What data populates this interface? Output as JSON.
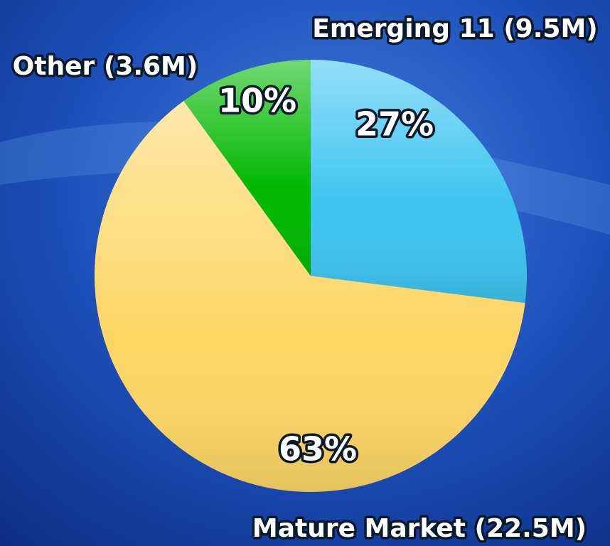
{
  "chart_data": {
    "type": "pie",
    "categories": [
      "Emerging 11 (9.5M)",
      "Mature Market (22.5M)",
      "Other (3.6M)"
    ],
    "values": [
      27,
      63,
      10
    ],
    "value_labels": [
      "27%",
      "63%",
      "10%"
    ],
    "colors": [
      "#3cc4f0",
      "#fdd665",
      "#00b800"
    ]
  }
}
